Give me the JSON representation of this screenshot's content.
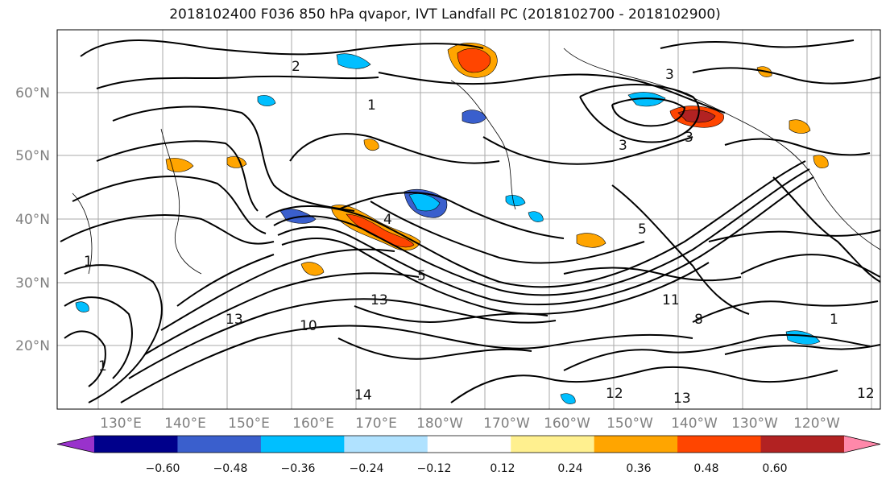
{
  "title": "2018102400 F036 850 hPa qvapor, IVT Landfall PC (2018102700 - 2018102900)",
  "lat_labels": [
    "60°N",
    "50°N",
    "40°N",
    "30°N",
    "20°N"
  ],
  "lon_labels": [
    "130°E",
    "140°E",
    "150°E",
    "160°E",
    "170°E",
    "180°W",
    "170°W",
    "160°W",
    "150°W",
    "140°W",
    "130°W",
    "120°W"
  ],
  "colorbar": {
    "colors": [
      "#9932cc",
      "#00008b",
      "#3a5fcd",
      "#00bfff",
      "#b0e2ff",
      "#ffffff",
      "#fff08f",
      "#ffa500",
      "#ff4500",
      "#b22222",
      "#ff88aa"
    ],
    "tick_labels": [
      "−0.60",
      "−0.48",
      "−0.36",
      "−0.24",
      "−0.12",
      "0.12",
      "0.24",
      "0.36",
      "0.48",
      "0.60"
    ]
  },
  "contour_labels": [
    "2",
    "1",
    "3",
    "3",
    "5",
    "4",
    "5",
    "8",
    "13",
    "13",
    "10",
    "12",
    "14",
    "13",
    "1",
    "11",
    "3",
    "12",
    "1",
    "1"
  ]
}
